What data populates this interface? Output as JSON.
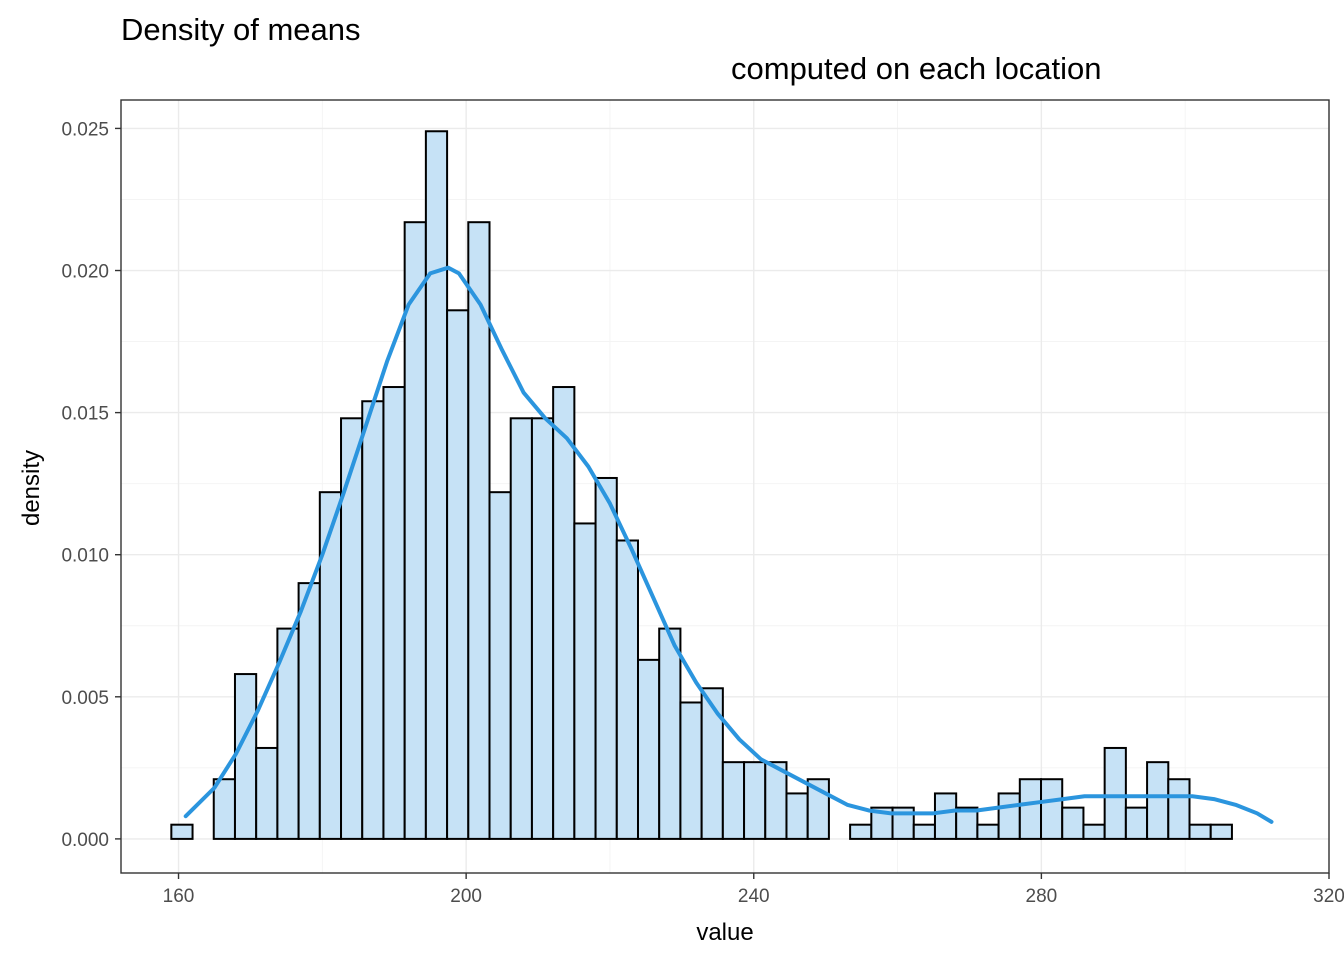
{
  "chart_data": {
    "type": "histogram",
    "title": "Density of means",
    "subtitle": "computed on each location",
    "xlabel": "value",
    "ylabel": "density",
    "xlim": [
      152,
      320
    ],
    "ylim": [
      -0.0012,
      0.026
    ],
    "x_ticks": [
      160,
      200,
      240,
      280,
      320
    ],
    "y_ticks": [
      0.0,
      0.005,
      0.01,
      0.015,
      0.02,
      0.025
    ],
    "x_tick_labels": [
      "160",
      "200",
      "240",
      "280",
      "320"
    ],
    "y_tick_labels": [
      "0.000",
      "0.005",
      "0.010",
      "0.015",
      "0.020",
      "0.025"
    ],
    "grid": true,
    "bin_width": 2.95,
    "bin_start": 159.0,
    "histogram_density": [
      0.0005,
      0.0,
      0.0021,
      0.0058,
      0.0032,
      0.0074,
      0.009,
      0.0122,
      0.0148,
      0.0154,
      0.0159,
      0.0217,
      0.0249,
      0.0186,
      0.0217,
      0.0122,
      0.0148,
      0.0148,
      0.0159,
      0.0111,
      0.0127,
      0.0105,
      0.0063,
      0.0074,
      0.0048,
      0.0053,
      0.0027,
      0.0027,
      0.0027,
      0.0016,
      0.0021,
      0.0,
      0.0005,
      0.0011,
      0.0011,
      0.0005,
      0.0016,
      0.0011,
      0.0005,
      0.0016,
      0.0021,
      0.0021,
      0.0011,
      0.0005,
      0.0032,
      0.0011,
      0.0027,
      0.0021,
      0.0005,
      0.0005
    ],
    "density_curve": {
      "x": [
        161,
        165,
        168,
        171,
        174,
        177,
        180,
        183,
        186,
        189,
        192,
        195,
        197.5,
        199,
        202,
        205,
        208,
        211,
        214,
        217,
        220,
        223,
        226,
        229,
        232,
        235,
        238,
        241,
        244,
        247,
        250,
        253,
        256,
        259,
        262,
        265,
        268,
        271,
        274,
        277,
        280,
        283,
        286,
        289,
        292,
        295,
        298,
        301,
        304,
        307,
        310,
        312
      ],
      "y": [
        0.0008,
        0.0018,
        0.003,
        0.0045,
        0.0062,
        0.008,
        0.01,
        0.0122,
        0.0145,
        0.0168,
        0.0188,
        0.0199,
        0.0201,
        0.0199,
        0.0188,
        0.0172,
        0.0157,
        0.0148,
        0.0141,
        0.0131,
        0.0118,
        0.0102,
        0.0085,
        0.0068,
        0.0055,
        0.0044,
        0.0035,
        0.0028,
        0.0024,
        0.002,
        0.0016,
        0.0012,
        0.001,
        0.0009,
        0.0009,
        0.0009,
        0.001,
        0.001,
        0.0011,
        0.0012,
        0.0013,
        0.0014,
        0.0015,
        0.0015,
        0.0015,
        0.0015,
        0.0015,
        0.0015,
        0.0014,
        0.0012,
        0.0009,
        0.0006
      ]
    },
    "colors": {
      "bar_fill": "#c6e2f6",
      "bar_stroke": "#000000",
      "curve": "#2b95de",
      "panel_border": "#333333",
      "grid": "#ebebeb"
    }
  }
}
